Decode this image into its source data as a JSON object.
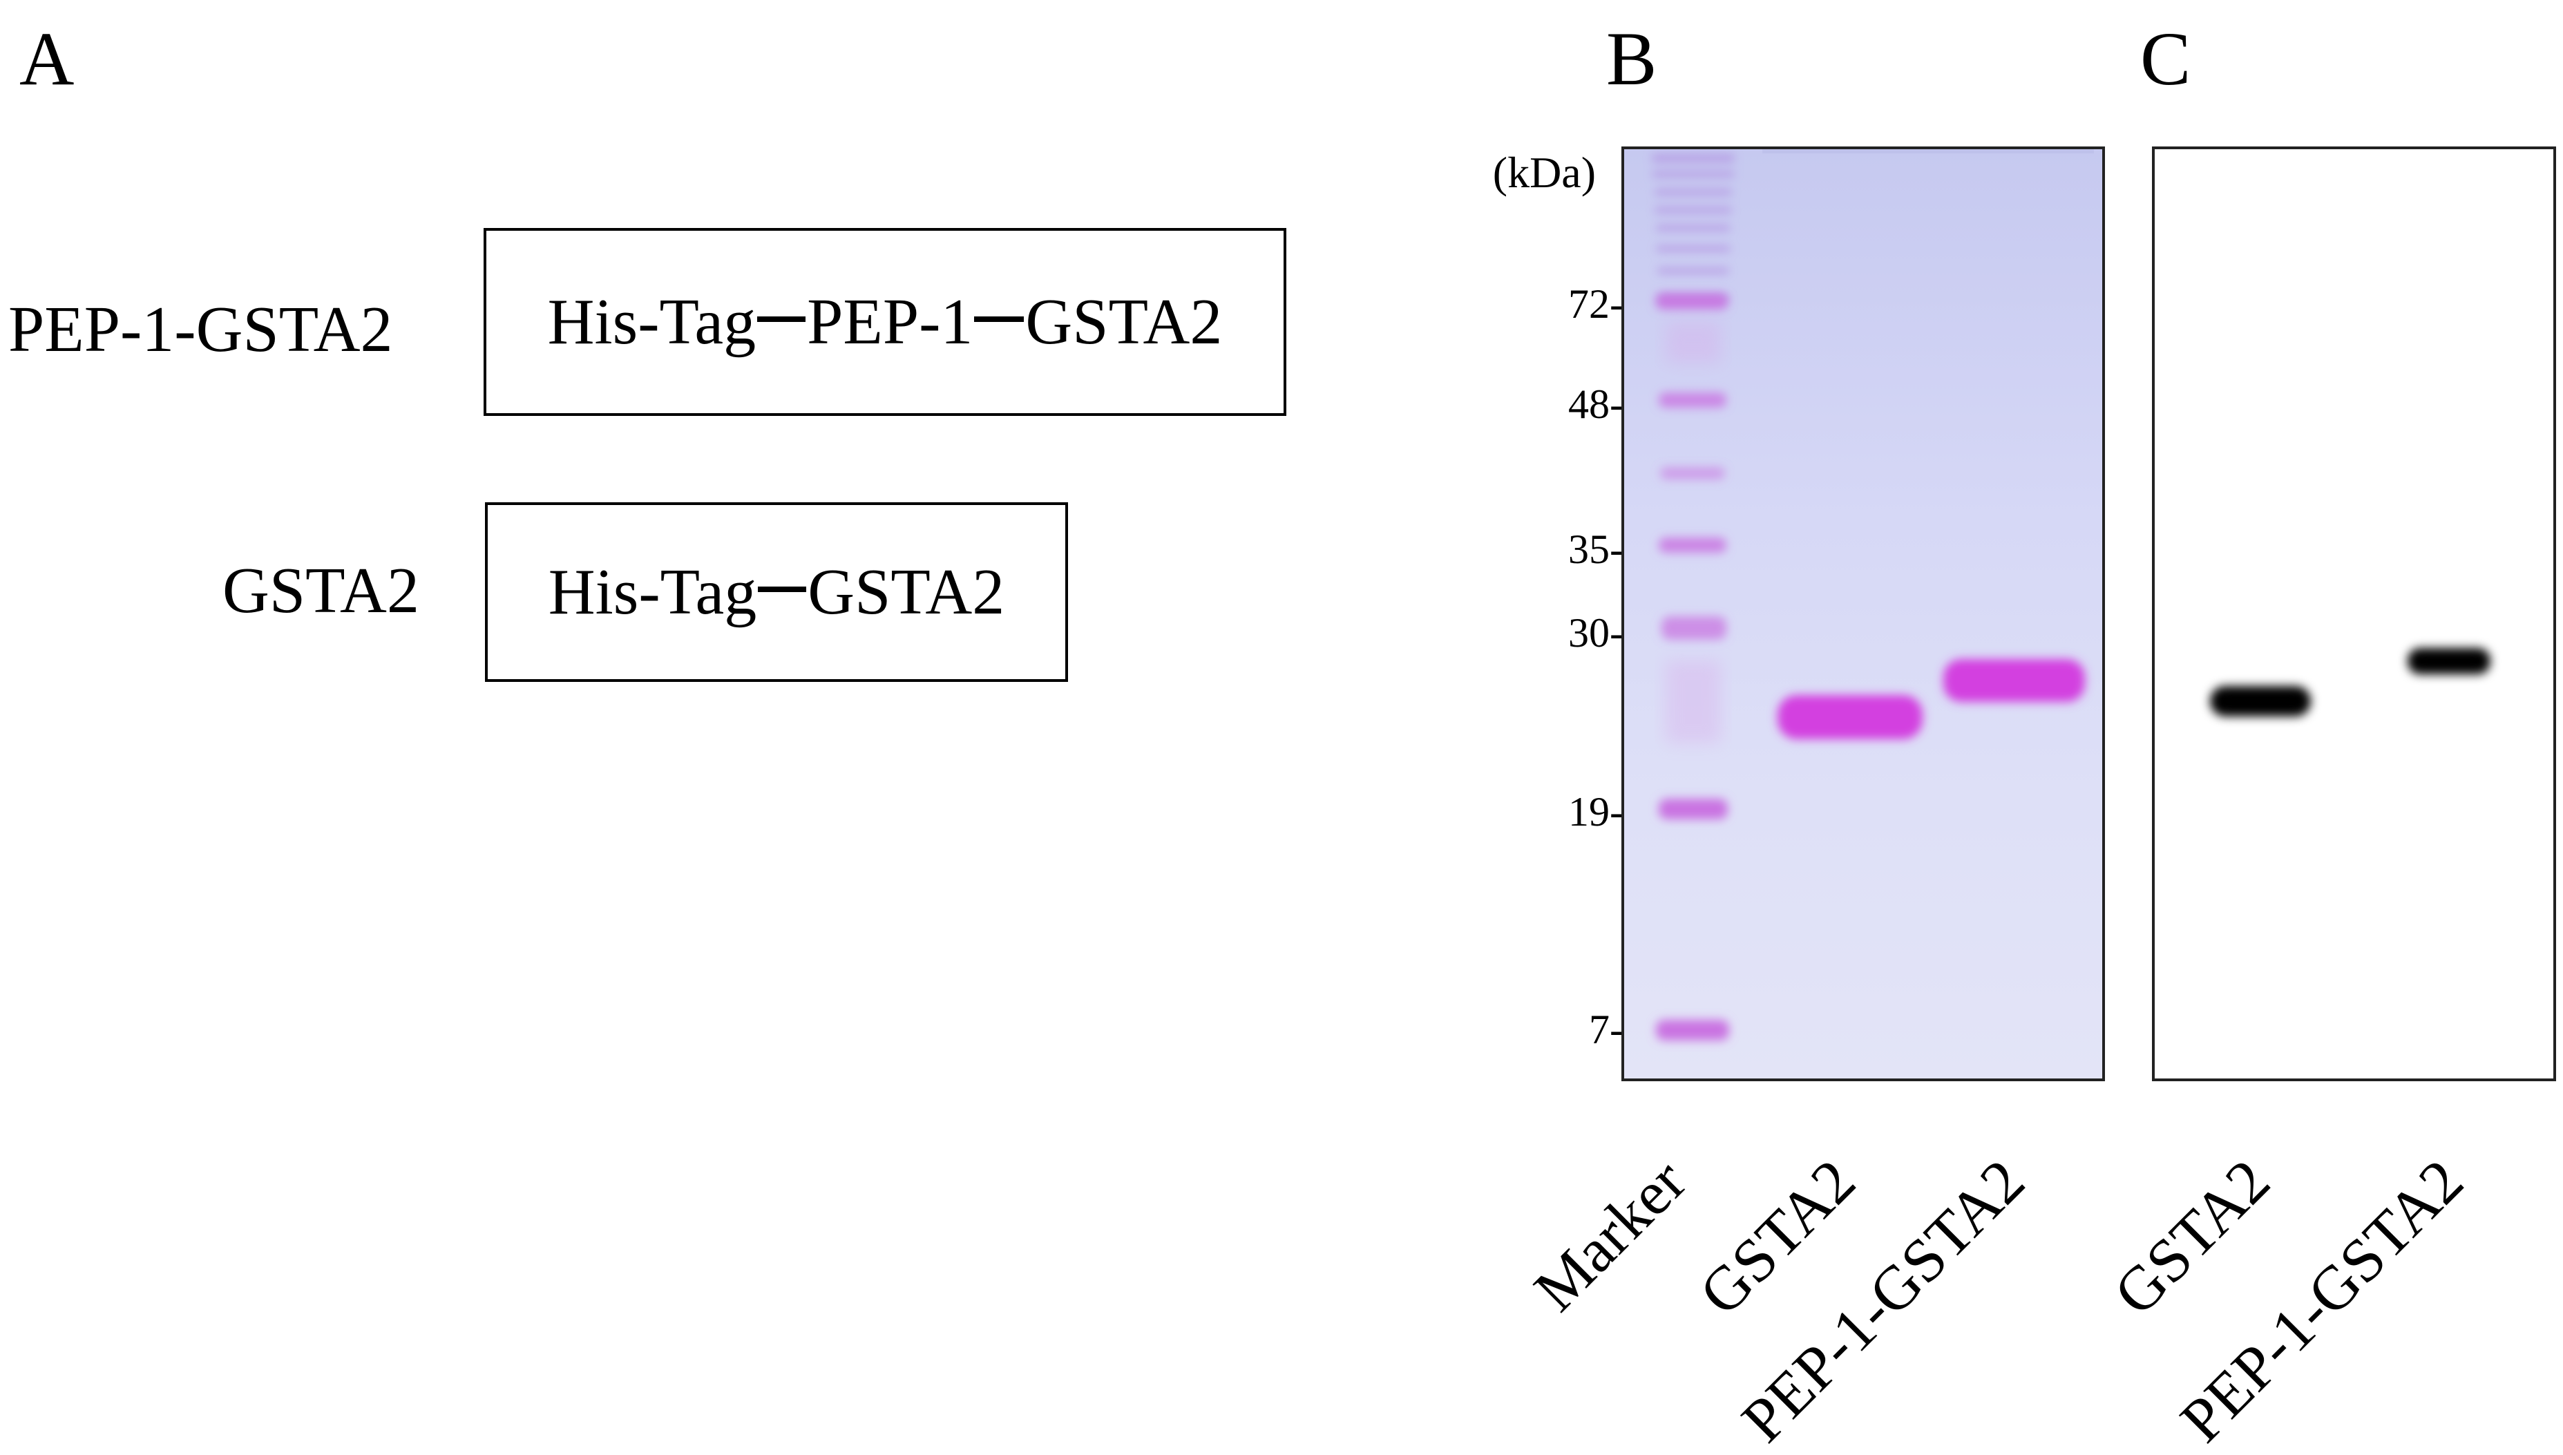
{
  "panels": {
    "a": {
      "letter": "A",
      "constructs": [
        {
          "name": "PEP-1-GSTA2",
          "segments": [
            "His-Tag",
            "PEP-1",
            "GSTA2"
          ]
        },
        {
          "name": "GSTA2",
          "segments": [
            "His-Tag",
            "GSTA2"
          ]
        }
      ]
    },
    "b": {
      "letter": "B",
      "unit_label": "(kDa)",
      "markers": [
        "72-",
        "48-",
        "35-",
        "30-",
        "19-",
        "7-"
      ],
      "lanes": [
        "Marker",
        "GSTA2",
        "PEP-1-GSTA2"
      ],
      "stain_color": "#c93bd6"
    },
    "c": {
      "letter": "C",
      "lanes": [
        "GSTA2",
        "PEP-1-GSTA2"
      ],
      "band_color": "#000000"
    }
  }
}
